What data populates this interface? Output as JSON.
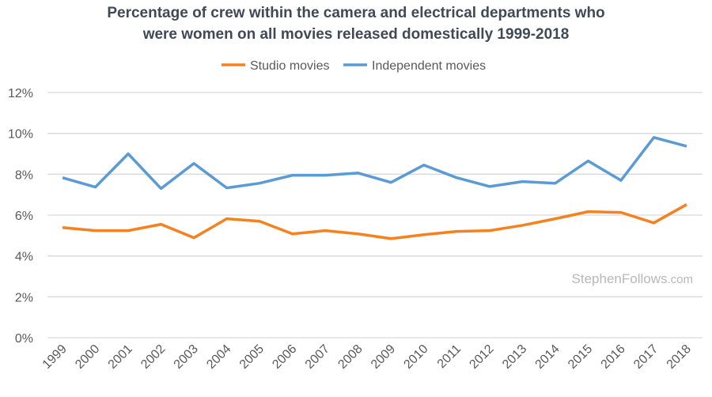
{
  "chart_data": {
    "type": "line",
    "title_lines": [
      "Percentage of crew within the camera and electrical departments who",
      "were women on all movies released domestically 1999-2018"
    ],
    "xlabel": "",
    "ylabel": "",
    "ylim": [
      0,
      12
    ],
    "yticks": [
      0,
      2,
      4,
      6,
      8,
      10,
      12
    ],
    "ytick_labels": [
      "0%",
      "2%",
      "4%",
      "6%",
      "8%",
      "10%",
      "12%"
    ],
    "grid": true,
    "legend_position": "top-center",
    "categories": [
      "1999",
      "2000",
      "2001",
      "2002",
      "2003",
      "2004",
      "2005",
      "2006",
      "2007",
      "2008",
      "2009",
      "2010",
      "2011",
      "2012",
      "2013",
      "2014",
      "2015",
      "2016",
      "2017",
      "2018"
    ],
    "series": [
      {
        "name": "Studio movies",
        "color": "#f5811f",
        "values": [
          5.39,
          5.24,
          5.24,
          5.55,
          4.89,
          5.82,
          5.7,
          5.08,
          5.24,
          5.08,
          4.85,
          5.04,
          5.2,
          5.24,
          5.5,
          5.82,
          6.17,
          6.13,
          5.62,
          6.52
        ]
      },
      {
        "name": "Independent movies",
        "color": "#5b9bd5",
        "values": [
          7.83,
          7.37,
          9.0,
          7.3,
          8.53,
          7.33,
          7.56,
          7.95,
          7.95,
          8.06,
          7.6,
          8.45,
          7.83,
          7.4,
          7.64,
          7.56,
          8.65,
          7.7,
          9.8,
          9.37
        ]
      }
    ],
    "watermark": {
      "main": "StephenFollows",
      "suffix": ".com"
    }
  }
}
